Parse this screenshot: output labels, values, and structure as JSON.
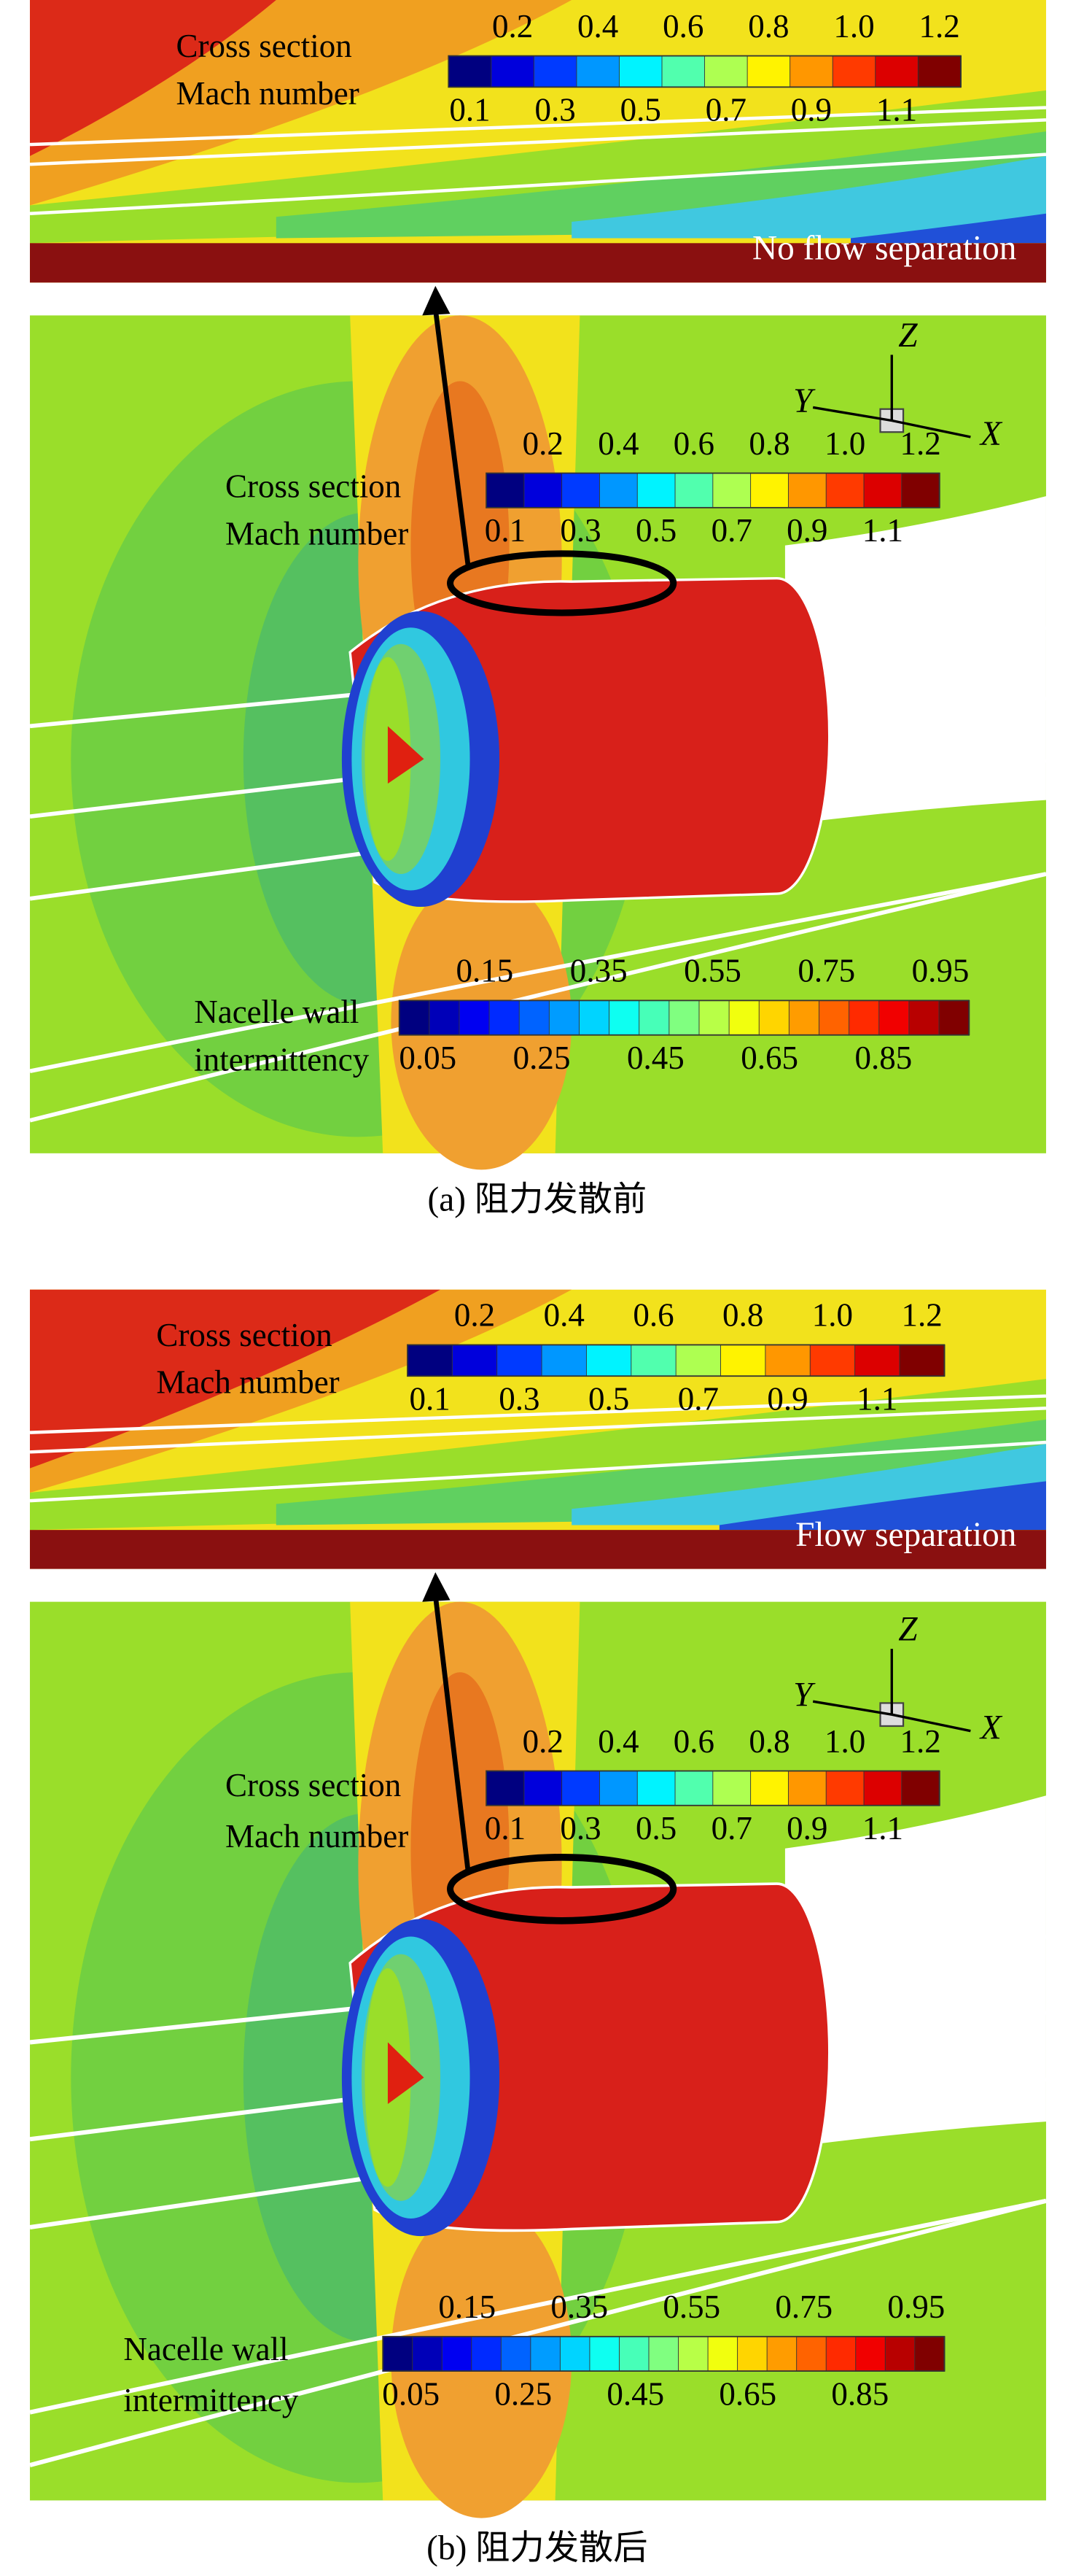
{
  "panels": [
    {
      "inset": {
        "legend": {
          "title_lines": [
            "Cross section",
            "Mach number"
          ],
          "upper_ticks": [
            "0.2",
            "0.4",
            "0.6",
            "0.8",
            "1.0",
            "1.2"
          ],
          "lower_ticks": [
            "0.1",
            "0.3",
            "0.5",
            "0.7",
            "0.9",
            "1.1"
          ]
        },
        "note": "No flow separation"
      },
      "main": {
        "mach_legend": {
          "title_lines": [
            "Cross section",
            "Mach number"
          ],
          "upper_ticks": [
            "0.2",
            "0.4",
            "0.6",
            "0.8",
            "1.0",
            "1.2"
          ],
          "lower_ticks": [
            "0.1",
            "0.3",
            "0.5",
            "0.7",
            "0.9",
            "1.1"
          ]
        },
        "intermittency_legend": {
          "title_lines": [
            "Nacelle wall",
            "intermittency"
          ],
          "upper_ticks": [
            "0.15",
            "0.35",
            "0.55",
            "0.75",
            "0.95"
          ],
          "lower_ticks": [
            "0.05",
            "0.25",
            "0.45",
            "0.65",
            "0.85"
          ]
        },
        "axes": {
          "z": "Z",
          "y": "Y",
          "x": "X"
        }
      },
      "caption": "(a) 阻力发散前"
    },
    {
      "inset": {
        "legend": {
          "title_lines": [
            "Cross section",
            "Mach number"
          ],
          "upper_ticks": [
            "0.2",
            "0.4",
            "0.6",
            "0.8",
            "1.0",
            "1.2"
          ],
          "lower_ticks": [
            "0.1",
            "0.3",
            "0.5",
            "0.7",
            "0.9",
            "1.1"
          ]
        },
        "note": "Flow separation"
      },
      "main": {
        "mach_legend": {
          "title_lines": [
            "Cross section",
            "Mach number"
          ],
          "upper_ticks": [
            "0.2",
            "0.4",
            "0.6",
            "0.8",
            "1.0",
            "1.2"
          ],
          "lower_ticks": [
            "0.1",
            "0.3",
            "0.5",
            "0.7",
            "0.9",
            "1.1"
          ]
        },
        "intermittency_legend": {
          "title_lines": [
            "Nacelle wall",
            "intermittency"
          ],
          "upper_ticks": [
            "0.15",
            "0.35",
            "0.55",
            "0.75",
            "0.95"
          ],
          "lower_ticks": [
            "0.05",
            "0.25",
            "0.45",
            "0.65",
            "0.85"
          ]
        },
        "axes": {
          "z": "Z",
          "y": "Y",
          "x": "X"
        }
      },
      "caption": "(b) 阻力发散后"
    }
  ]
}
